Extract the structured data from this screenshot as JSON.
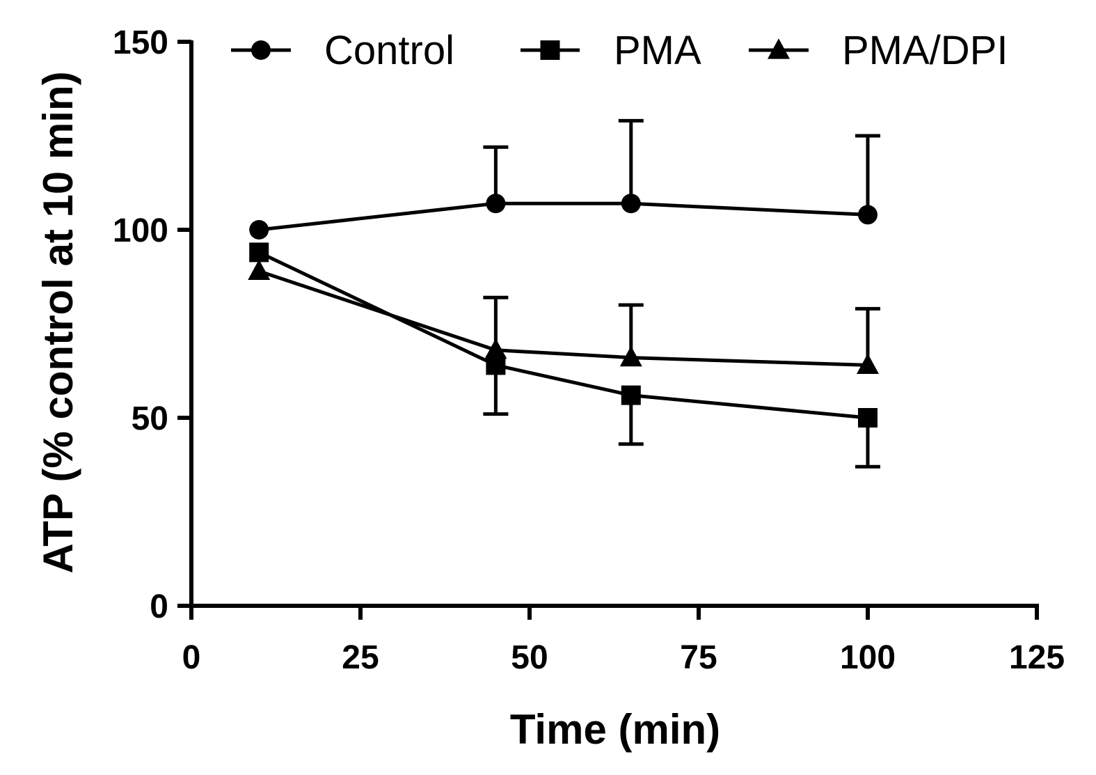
{
  "chart_data": {
    "type": "line",
    "title": "",
    "xlabel": "Time (min)",
    "ylabel": "ATP (% control at 10 min)",
    "xlim": [
      0,
      125
    ],
    "ylim": [
      0,
      150
    ],
    "xticks": [
      0,
      25,
      50,
      75,
      100,
      125
    ],
    "yticks": [
      0,
      50,
      100,
      150
    ],
    "xtick_labels": [
      "0",
      "25",
      "50",
      "75",
      "100",
      "125"
    ],
    "ytick_labels": [
      "0",
      "50",
      "100",
      "150"
    ],
    "grid": false,
    "legend_position": "top",
    "series": [
      {
        "name": "Control",
        "marker": "circle",
        "x": [
          10,
          45,
          65,
          100
        ],
        "y": [
          100,
          107,
          107,
          104
        ],
        "error_up": [
          null,
          15,
          22,
          21
        ],
        "error_down": [
          null,
          null,
          null,
          null
        ]
      },
      {
        "name": "PMA",
        "marker": "square",
        "x": [
          10,
          45,
          65,
          100
        ],
        "y": [
          94,
          64,
          56,
          50
        ],
        "error_up": [
          null,
          null,
          null,
          null
        ],
        "error_down": [
          null,
          13,
          13,
          13
        ]
      },
      {
        "name": "PMA/DPI",
        "marker": "triangle",
        "x": [
          10,
          45,
          65,
          100
        ],
        "y": [
          89,
          68,
          66,
          64
        ],
        "error_up": [
          null,
          14,
          14,
          15
        ],
        "error_down": [
          null,
          null,
          null,
          null
        ]
      }
    ]
  }
}
